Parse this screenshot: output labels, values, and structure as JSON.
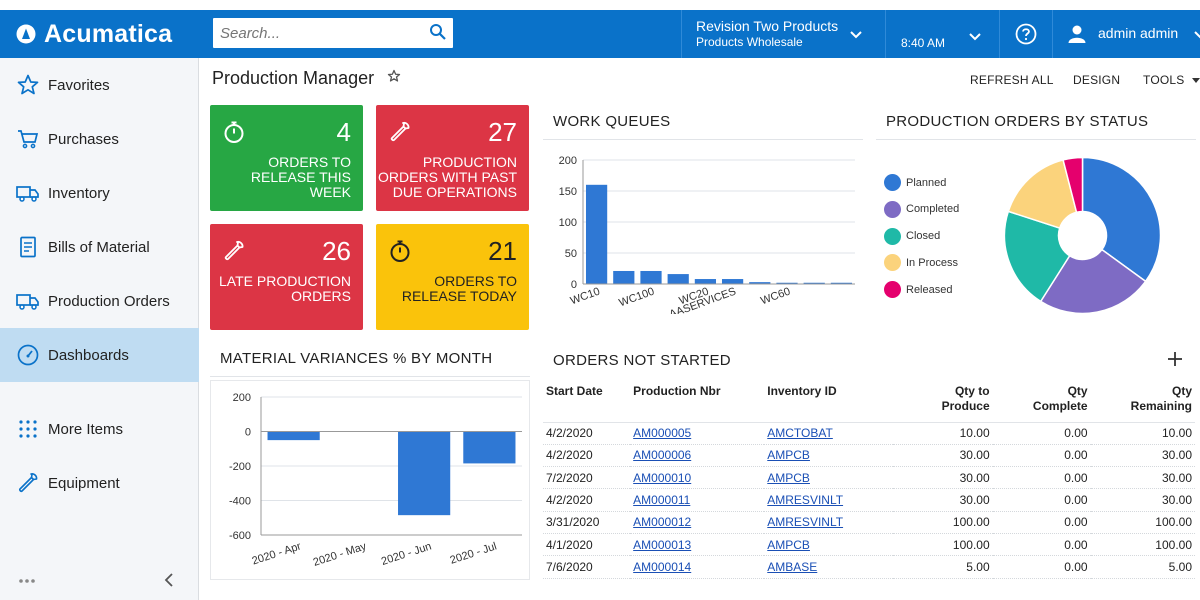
{
  "app": {
    "brand": "Acumatica"
  },
  "header": {
    "search_placeholder": "Search...",
    "branch_line1": "Revision Two Products",
    "branch_line2": "Products Wholesale",
    "time": "8:40 AM",
    "user": "admin admin"
  },
  "sidebar": {
    "items": [
      {
        "label": "Favorites",
        "icon": "star-icon"
      },
      {
        "label": "Purchases",
        "icon": "cart-icon"
      },
      {
        "label": "Inventory",
        "icon": "truck-icon"
      },
      {
        "label": "Bills of Material",
        "icon": "document-icon"
      },
      {
        "label": "Production Orders",
        "icon": "truck-icon"
      },
      {
        "label": "Dashboards",
        "icon": "gauge-icon"
      },
      {
        "label": "More Items",
        "icon": "grid-icon"
      },
      {
        "label": "Equipment",
        "icon": "wrench-icon"
      }
    ]
  },
  "page": {
    "title": "Production Manager",
    "refresh_all": "REFRESH ALL",
    "design": "DESIGN",
    "tools": "TOOLS"
  },
  "tiles": [
    {
      "value": "4",
      "label": "ORDERS TO RELEASE THIS WEEK",
      "color": "#27a744",
      "icon": "stopwatch-icon"
    },
    {
      "value": "27",
      "label": "PRODUCTION ORDERS WITH PAST DUE OPERATIONS",
      "color": "#dc3545",
      "icon": "wrench-icon"
    },
    {
      "value": "26",
      "label": "LATE PRODUCTION ORDERS",
      "color": "#dc3545",
      "icon": "wrench-icon"
    },
    {
      "value": "21",
      "label": "ORDERS TO RELEASE TODAY",
      "color": "#fac30b",
      "icon": "stopwatch-icon"
    }
  ],
  "work_queues": {
    "title": "WORK QUEUES"
  },
  "production_status": {
    "title": "PRODUCTION ORDERS BY STATUS"
  },
  "material_variances": {
    "title": "MATERIAL VARIANCES % BY MONTH"
  },
  "orders_not_started": {
    "title": "ORDERS NOT STARTED",
    "columns": [
      "Start Date",
      "Production Nbr",
      "Inventory ID",
      "Qty to Produce",
      "Qty Complete",
      "Qty Remaining"
    ],
    "rows": [
      [
        "4/2/2020",
        "AM000005",
        "AMCTOBAT",
        "10.00",
        "0.00",
        "10.00"
      ],
      [
        "4/2/2020",
        "AM000006",
        "AMPCB",
        "30.00",
        "0.00",
        "30.00"
      ],
      [
        "7/2/2020",
        "AM000010",
        "AMPCB",
        "30.00",
        "0.00",
        "30.00"
      ],
      [
        "4/2/2020",
        "AM000011",
        "AMRESVINLT",
        "30.00",
        "0.00",
        "30.00"
      ],
      [
        "3/31/2020",
        "AM000012",
        "AMRESVINLT",
        "100.00",
        "0.00",
        "100.00"
      ],
      [
        "4/1/2020",
        "AM000013",
        "AMPCB",
        "100.00",
        "0.00",
        "100.00"
      ],
      [
        "7/6/2020",
        "AM000014",
        "AMBASE",
        "5.00",
        "0.00",
        "5.00"
      ]
    ]
  },
  "chart_data": [
    {
      "type": "bar",
      "title": "WORK QUEUES",
      "categories": [
        "WC10",
        "",
        "WC100",
        "",
        "WC20",
        "AASERVICES",
        "",
        "WC60",
        "",
        ""
      ],
      "values": [
        160,
        21,
        21,
        16,
        8,
        8,
        3,
        2,
        2,
        2
      ],
      "ylim": [
        0,
        200
      ],
      "yticks": [
        0,
        50,
        100,
        150,
        200
      ],
      "color": "#2f78d4",
      "grid": true
    },
    {
      "type": "pie",
      "title": "PRODUCTION ORDERS BY STATUS",
      "labels": [
        "Planned",
        "Completed",
        "Closed",
        "In Process",
        "Released"
      ],
      "values": [
        35,
        24,
        21,
        16,
        4
      ],
      "colors": [
        "#2f78d4",
        "#7e6bc4",
        "#1fb9a7",
        "#fbd37c",
        "#e5006d"
      ],
      "donut": true,
      "legend": "left"
    },
    {
      "type": "bar",
      "title": "MATERIAL VARIANCES % BY MONTH",
      "categories": [
        "2020 - Apr",
        "2020 - May",
        "2020 - Jun",
        "2020 - Jul"
      ],
      "values": [
        -50,
        0,
        -485,
        -185
      ],
      "ylim": [
        -600,
        200
      ],
      "yticks": [
        200,
        0,
        -200,
        -400,
        -600
      ],
      "color": "#2f78d4",
      "grid": true
    }
  ]
}
